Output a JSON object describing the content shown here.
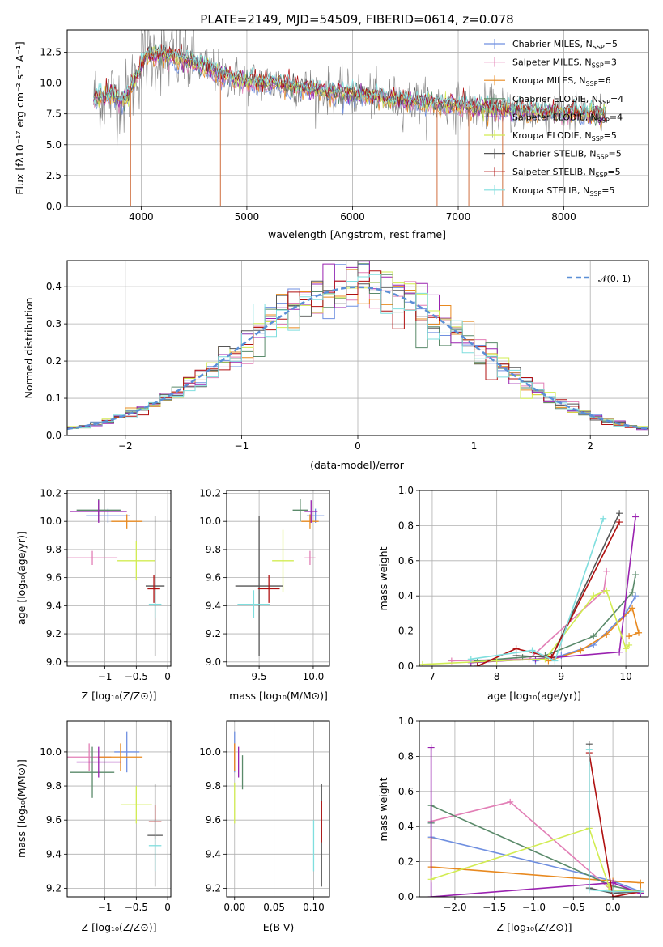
{
  "colors": {
    "chabrier_miles": "#6f8fe0",
    "salpeter_miles": "#e27fb6",
    "kroupa_miles": "#e8891f",
    "chabrier_elodie": "#5a8a6a",
    "salpeter_elodie": "#9a22b0",
    "kroupa_elodie": "#d2ec52",
    "chabrier_stelib": "#555555",
    "salpeter_stelib": "#b01010",
    "kroupa_stelib": "#7fdede",
    "data_gray": "#808080",
    "normal_line": "#5b8fd6"
  },
  "chart_data": [
    {
      "id": "spectrum",
      "type": "line",
      "title": "PLATE=2149, MJD=54509, FIBERID=0614, z=0.078",
      "xlabel": "wavelength [Angstrom, rest frame]",
      "ylabel": "Flux [fλ10⁻¹⁷ erg cm⁻² s⁻¹ A⁻¹]",
      "xlim": [
        3300,
        8800
      ],
      "ylim": [
        0,
        14.3
      ],
      "xticks": [
        4000,
        5000,
        6000,
        7000,
        8000
      ],
      "yticks": [
        0.0,
        2.5,
        5.0,
        7.5,
        10.0,
        12.5
      ],
      "ytick_labels": [
        "0.0",
        "2.5",
        "5.0",
        "7.5",
        "10.0",
        "12.5"
      ],
      "legend_position": "top-right",
      "series": [
        {
          "key": "chabrier_miles",
          "name": "Chabrier MILES, N",
          "sub": "SSP",
          "suffix": "=5"
        },
        {
          "key": "salpeter_miles",
          "name": "Salpeter MILES, N",
          "sub": "SSP",
          "suffix": "=3"
        },
        {
          "key": "kroupa_miles",
          "name": "Kroupa MILES, N",
          "sub": "SSP",
          "suffix": "=6"
        },
        {
          "key": "chabrier_elodie",
          "name": "Chabrier ELODIE, N",
          "sub": "SSP",
          "suffix": "=4"
        },
        {
          "key": "salpeter_elodie",
          "name": "Salpeter ELODIE, N",
          "sub": "SSP",
          "suffix": "=4"
        },
        {
          "key": "kroupa_elodie",
          "name": "Kroupa ELODIE, N",
          "sub": "SSP",
          "suffix": "=5"
        },
        {
          "key": "chabrier_stelib",
          "name": "Chabrier STELIB, N",
          "sub": "SSP",
          "suffix": "=5"
        },
        {
          "key": "salpeter_stelib",
          "name": "Salpeter STELIB, N",
          "sub": "SSP",
          "suffix": "=5"
        },
        {
          "key": "kroupa_stelib",
          "name": "Kroupa STELIB, N",
          "sub": "SSP",
          "suffix": "=5"
        }
      ],
      "continuum": [
        [
          3550,
          8.7
        ],
        [
          3700,
          9.0
        ],
        [
          3850,
          8.6
        ],
        [
          3950,
          10.5
        ],
        [
          4050,
          12.2
        ],
        [
          4200,
          12.3
        ],
        [
          4400,
          11.9
        ],
        [
          4600,
          11.3
        ],
        [
          4800,
          10.6
        ],
        [
          5000,
          10.2
        ],
        [
          5300,
          9.9
        ],
        [
          5600,
          9.5
        ],
        [
          6000,
          9.1
        ],
        [
          6400,
          8.7
        ],
        [
          6800,
          8.3
        ],
        [
          7200,
          8.0
        ],
        [
          7600,
          7.7
        ],
        [
          8000,
          7.6
        ],
        [
          8400,
          7.4
        ]
      ],
      "dips": [
        [
          3900,
          0.0
        ],
        [
          4750,
          0.0
        ],
        [
          6800,
          0.0
        ],
        [
          7100,
          0.0
        ],
        [
          7420,
          0.0
        ]
      ]
    },
    {
      "id": "residuals",
      "type": "histogram",
      "xlabel": "(data-model)/error",
      "ylabel": "Normed distribution",
      "xlim": [
        -2.5,
        2.5
      ],
      "ylim": [
        0,
        0.47
      ],
      "xticks": [
        -2,
        -1,
        0,
        1,
        2
      ],
      "xtick_labels": [
        "−2",
        "−1",
        "0",
        "1",
        "2"
      ],
      "yticks": [
        0.0,
        0.1,
        0.2,
        0.3,
        0.4
      ],
      "ytick_labels": [
        "0.0",
        "0.1",
        "0.2",
        "0.3",
        "0.4"
      ],
      "legend": "𝒩(0, 1)",
      "legend_position": "top-right",
      "bin_width": 0.1,
      "normal_curve": {
        "mu": 0,
        "sigma": 1
      }
    },
    {
      "id": "age_vs_Z",
      "type": "errorbar",
      "xlabel": "Z [log₁₀(Z/Z⊙)]",
      "ylabel": "age  [log₁₀(age/yr)]",
      "xlim": [
        -1.6,
        0.05
      ],
      "ylim": [
        8.97,
        10.22
      ],
      "xticks": [
        -1,
        -0.5,
        0
      ],
      "xtick_labels": [
        "−1",
        "−0.5",
        "0"
      ],
      "yticks": [
        9.0,
        9.2,
        9.4,
        9.6,
        9.8,
        10.0,
        10.2
      ],
      "ytick_labels": [
        "9.0",
        "9.2",
        "9.4",
        "9.6",
        "9.8",
        "10.0",
        "10.2"
      ],
      "points": [
        {
          "key": "chabrier_miles",
          "x": -0.95,
          "xerr": 0.35,
          "y": 10.04,
          "yerr": 0.05
        },
        {
          "key": "salpeter_miles",
          "x": -1.2,
          "xerr": 0.4,
          "y": 9.74,
          "yerr": 0.05
        },
        {
          "key": "kroupa_miles",
          "x": -0.65,
          "xerr": 0.25,
          "y": 10.0,
          "yerr": 0.05
        },
        {
          "key": "chabrier_elodie",
          "x": -1.1,
          "xerr": 0.35,
          "y": 10.08,
          "yerr": 0.08
        },
        {
          "key": "salpeter_elodie",
          "x": -1.1,
          "xerr": 0.45,
          "y": 10.07,
          "yerr": 0.08
        },
        {
          "key": "kroupa_elodie",
          "x": -0.5,
          "xerr": 0.3,
          "y": 9.72,
          "yerr": 0.14
        },
        {
          "key": "chabrier_stelib",
          "x": -0.2,
          "xerr": 0.15,
          "y": 9.54,
          "yerr": 0.5
        },
        {
          "key": "salpeter_stelib",
          "x": -0.22,
          "xerr": 0.1,
          "y": 9.52,
          "yerr": 0.1
        },
        {
          "key": "kroupa_stelib",
          "x": -0.2,
          "xerr": 0.1,
          "y": 9.41,
          "yerr": 0.1
        }
      ]
    },
    {
      "id": "age_vs_mass",
      "type": "errorbar",
      "xlabel": "mass [log₁₀(M/M⊙)]",
      "ylabel": "",
      "xlim": [
        9.2,
        10.15
      ],
      "ylim": [
        8.97,
        10.22
      ],
      "xticks": [
        9.5,
        10.0
      ],
      "xtick_labels": [
        "9.5",
        "10.0"
      ],
      "yticks": [
        9.0,
        9.2,
        9.4,
        9.6,
        9.8,
        10.0,
        10.2
      ],
      "ytick_labels": [
        "9.0",
        "9.2",
        "9.4",
        "9.6",
        "9.8",
        "10.0",
        "10.2"
      ],
      "points": [
        {
          "key": "chabrier_miles",
          "x": 10.02,
          "xerr": 0.08,
          "y": 10.04,
          "yerr": 0.05
        },
        {
          "key": "salpeter_miles",
          "x": 9.97,
          "xerr": 0.05,
          "y": 9.74,
          "yerr": 0.05
        },
        {
          "key": "kroupa_miles",
          "x": 9.97,
          "xerr": 0.08,
          "y": 10.0,
          "yerr": 0.05
        },
        {
          "key": "chabrier_elodie",
          "x": 9.88,
          "xerr": 0.07,
          "y": 10.08,
          "yerr": 0.08
        },
        {
          "key": "salpeter_elodie",
          "x": 9.98,
          "xerr": 0.06,
          "y": 10.07,
          "yerr": 0.08
        },
        {
          "key": "kroupa_elodie",
          "x": 9.72,
          "xerr": 0.1,
          "y": 9.72,
          "yerr": 0.22
        },
        {
          "key": "chabrier_stelib",
          "x": 9.5,
          "xerr": 0.22,
          "y": 9.54,
          "yerr": 0.5
        },
        {
          "key": "salpeter_stelib",
          "x": 9.59,
          "xerr": 0.1,
          "y": 9.52,
          "yerr": 0.1
        },
        {
          "key": "kroupa_stelib",
          "x": 9.45,
          "xerr": 0.15,
          "y": 9.41,
          "yerr": 0.1
        }
      ]
    },
    {
      "id": "massweight_vs_age",
      "type": "line",
      "xlabel": "age  [log₁₀(age/yr)]",
      "ylabel": "mass weight",
      "xlim": [
        6.8,
        10.35
      ],
      "ylim": [
        0,
        1.0
      ],
      "xticks": [
        7,
        8,
        9,
        10
      ],
      "xtick_labels": [
        "7",
        "8",
        "9",
        "10"
      ],
      "yticks": [
        0.0,
        0.2,
        0.4,
        0.6,
        0.8,
        1.0
      ],
      "ytick_labels": [
        "0.0",
        "0.2",
        "0.4",
        "0.6",
        "0.8",
        "1.0"
      ],
      "series": [
        {
          "key": "chabrier_miles",
          "x": [
            8.6,
            9.0,
            9.5,
            10.0,
            10.15
          ],
          "y": [
            0.03,
            0.06,
            0.12,
            0.3,
            0.4
          ]
        },
        {
          "key": "salpeter_miles",
          "x": [
            7.3,
            8.5,
            9.66,
            9.7
          ],
          "y": [
            0.03,
            0.04,
            0.43,
            0.54
          ]
        },
        {
          "key": "kroupa_miles",
          "x": [
            8.8,
            9.3,
            9.7,
            10.1,
            10.2,
            10.05
          ],
          "y": [
            0.03,
            0.09,
            0.18,
            0.33,
            0.19,
            0.17
          ]
        },
        {
          "key": "chabrier_elodie",
          "x": [
            7.7,
            8.4,
            8.75,
            9.5,
            10.1,
            10.15
          ],
          "y": [
            0.03,
            0.05,
            0.06,
            0.17,
            0.42,
            0.52
          ]
        },
        {
          "key": "salpeter_elodie",
          "x": [
            7.6,
            8.6,
            9.9,
            10.15
          ],
          "y": [
            0.02,
            0.04,
            0.08,
            0.85
          ]
        },
        {
          "key": "kroupa_elodie",
          "x": [
            6.85,
            8.0,
            8.75,
            9.5,
            9.7,
            10.0,
            10.05
          ],
          "y": [
            0.01,
            0.03,
            0.04,
            0.4,
            0.43,
            0.1,
            0.12
          ]
        },
        {
          "key": "chabrier_stelib",
          "x": [
            8.3,
            8.85,
            9.9
          ],
          "y": [
            0.06,
            0.05,
            0.87
          ]
        },
        {
          "key": "salpeter_stelib",
          "x": [
            7.7,
            8.3,
            8.85,
            9.9
          ],
          "y": [
            0.0,
            0.1,
            0.05,
            0.82
          ]
        },
        {
          "key": "kroupa_stelib",
          "x": [
            7.6,
            8.55,
            8.9,
            9.65
          ],
          "y": [
            0.04,
            0.09,
            0.03,
            0.84
          ]
        }
      ]
    },
    {
      "id": "mass_vs_Z",
      "type": "errorbar",
      "xlabel": "Z [log₁₀(Z/Z⊙)]",
      "ylabel": "mass [log₁₀(M/M⊙)]",
      "xlim": [
        -1.6,
        0.05
      ],
      "ylim": [
        9.15,
        10.18
      ],
      "xticks": [
        -1,
        -0.5,
        0
      ],
      "xtick_labels": [
        "−1",
        "−0.5",
        "0"
      ],
      "yticks": [
        9.2,
        9.4,
        9.6,
        9.8,
        10.0
      ],
      "ytick_labels": [
        "9.2",
        "9.4",
        "9.6",
        "9.8",
        "10.0"
      ],
      "points": [
        {
          "key": "chabrier_miles",
          "x": -0.65,
          "xerr": 0.2,
          "y": 10.0,
          "yerr": 0.12
        },
        {
          "key": "salpeter_miles",
          "x": -1.25,
          "xerr": 0.35,
          "y": 9.97,
          "yerr": 0.08
        },
        {
          "key": "kroupa_miles",
          "x": -0.75,
          "xerr": 0.35,
          "y": 9.97,
          "yerr": 0.08
        },
        {
          "key": "chabrier_elodie",
          "x": -1.2,
          "xerr": 0.35,
          "y": 9.88,
          "yerr": 0.15
        },
        {
          "key": "salpeter_elodie",
          "x": -1.1,
          "xerr": 0.35,
          "y": 9.94,
          "yerr": 0.09
        },
        {
          "key": "kroupa_elodie",
          "x": -0.5,
          "xerr": 0.25,
          "y": 9.69,
          "yerr": 0.11
        },
        {
          "key": "chabrier_stelib",
          "x": -0.2,
          "xerr": 0.12,
          "y": 9.51,
          "yerr": 0.3
        },
        {
          "key": "salpeter_stelib",
          "x": -0.2,
          "xerr": 0.1,
          "y": 9.59,
          "yerr": 0.1
        },
        {
          "key": "kroupa_stelib",
          "x": -0.2,
          "xerr": 0.1,
          "y": 9.45,
          "yerr": 0.15
        }
      ]
    },
    {
      "id": "mass_vs_ebv",
      "type": "errorbar",
      "xlabel": "E(B-V)",
      "ylabel": "",
      "xlim": [
        -0.01,
        0.12
      ],
      "ylim": [
        9.15,
        10.18
      ],
      "xticks": [
        0.0,
        0.05,
        0.1
      ],
      "xtick_labels": [
        "0.00",
        "0.05",
        "0.10"
      ],
      "yticks": [
        9.2,
        9.4,
        9.6,
        9.8,
        10.0
      ],
      "ytick_labels": [
        "9.2",
        "9.4",
        "9.6",
        "9.8",
        "10.0"
      ],
      "points": [
        {
          "key": "chabrier_miles",
          "x": 0.0,
          "xerr": 0,
          "y": 10.0,
          "yerr": 0.12
        },
        {
          "key": "salpeter_miles",
          "x": 0.0,
          "xerr": 0,
          "y": 9.97,
          "yerr": 0.08
        },
        {
          "key": "kroupa_miles",
          "x": 0.0,
          "xerr": 0,
          "y": 9.97,
          "yerr": 0.08
        },
        {
          "key": "chabrier_elodie",
          "x": 0.01,
          "xerr": 0,
          "y": 9.88,
          "yerr": 0.1
        },
        {
          "key": "salpeter_elodie",
          "x": 0.005,
          "xerr": 0,
          "y": 9.94,
          "yerr": 0.09
        },
        {
          "key": "kroupa_elodie",
          "x": 0.0,
          "xerr": 0,
          "y": 9.7,
          "yerr": 0.12
        },
        {
          "key": "chabrier_stelib",
          "x": 0.11,
          "xerr": 0,
          "y": 9.51,
          "yerr": 0.3
        },
        {
          "key": "salpeter_stelib",
          "x": 0.11,
          "xerr": 0,
          "y": 9.59,
          "yerr": 0.12
        },
        {
          "key": "kroupa_stelib",
          "x": 0.1,
          "xerr": 0,
          "y": 9.45,
          "yerr": 0.15
        }
      ]
    },
    {
      "id": "massweight_vs_Z",
      "type": "line",
      "xlabel": "Z [log₁₀(Z/Z⊙)]",
      "ylabel": "mass weight",
      "xlim": [
        -2.45,
        0.45
      ],
      "ylim": [
        0,
        1.0
      ],
      "xticks": [
        -2.0,
        -1.5,
        -1.0,
        -0.5,
        0.0
      ],
      "xtick_labels": [
        "−2.0",
        "−1.5",
        "−1.0",
        "−0.5",
        "0.0"
      ],
      "yticks": [
        0.0,
        0.2,
        0.4,
        0.6,
        0.8,
        1.0
      ],
      "ytick_labels": [
        "0.0",
        "0.2",
        "0.4",
        "0.6",
        "0.8",
        "1.0"
      ],
      "series": [
        {
          "key": "chabrier_miles",
          "x": [
            -2.3,
            -2.3,
            0.0,
            0.35
          ],
          "y": [
            0.42,
            0.34,
            0.09,
            0.03
          ]
        },
        {
          "key": "salpeter_miles",
          "x": [
            -2.3,
            -1.3,
            0.0,
            0.35
          ],
          "y": [
            0.43,
            0.54,
            0.03,
            0.02
          ]
        },
        {
          "key": "kroupa_miles",
          "x": [
            -2.3,
            -2.3,
            0.0,
            0.35,
            0.35
          ],
          "y": [
            0.33,
            0.17,
            0.09,
            0.08,
            0.03
          ]
        },
        {
          "key": "chabrier_elodie",
          "x": [
            -2.3,
            -2.3,
            0.0,
            0.35
          ],
          "y": [
            0.42,
            0.52,
            0.06,
            0.03
          ]
        },
        {
          "key": "salpeter_elodie",
          "x": [
            -2.3,
            -2.3,
            0.0,
            0.35
          ],
          "y": [
            0.85,
            0.0,
            0.08,
            0.02
          ]
        },
        {
          "key": "kroupa_elodie",
          "x": [
            -2.3,
            -0.3,
            -0.05,
            -0.05,
            0.35
          ],
          "y": [
            0.1,
            0.39,
            0.06,
            0.04,
            0.03
          ]
        },
        {
          "key": "chabrier_stelib",
          "x": [
            -0.3,
            -0.3,
            0.0,
            0.35
          ],
          "y": [
            0.87,
            0.05,
            0.02,
            0.03
          ]
        },
        {
          "key": "salpeter_stelib",
          "x": [
            -0.3,
            0.0,
            0.35
          ],
          "y": [
            0.82,
            0.0,
            0.03
          ]
        },
        {
          "key": "kroupa_stelib",
          "x": [
            -0.3,
            -0.3,
            0.0,
            0.35
          ],
          "y": [
            0.84,
            0.04,
            0.03,
            0.03
          ]
        }
      ]
    }
  ]
}
